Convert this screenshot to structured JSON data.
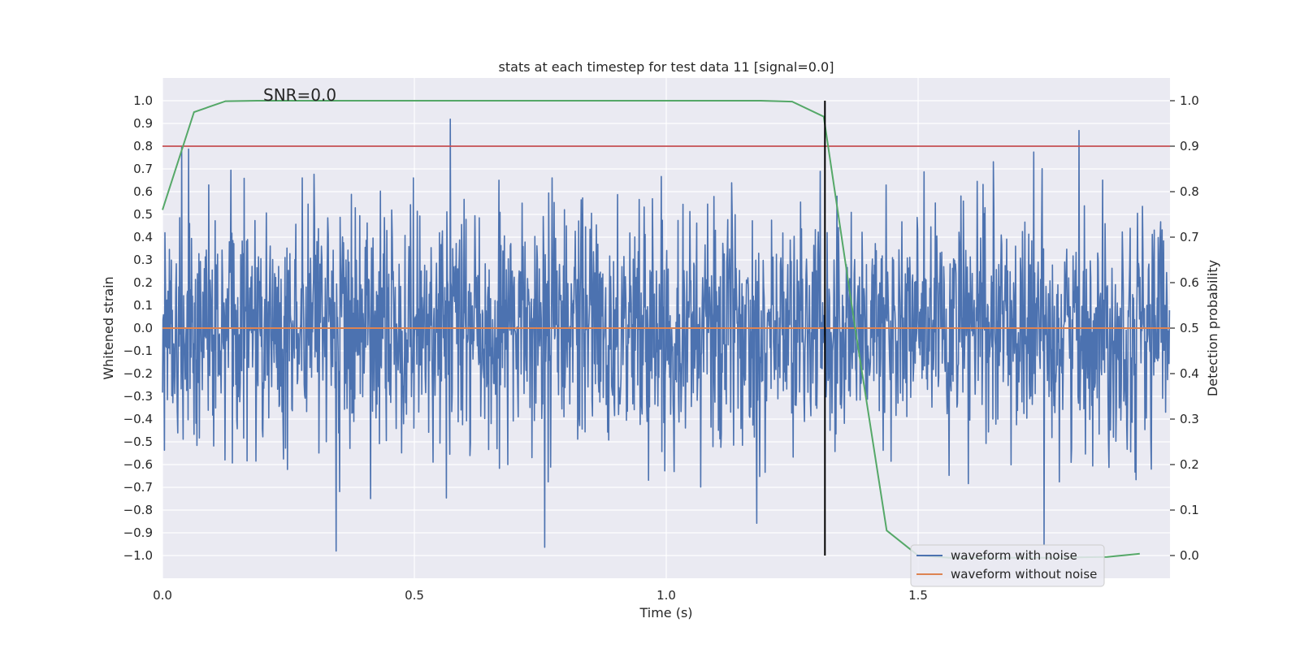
{
  "chart_data": {
    "type": "line",
    "title": "stats at each timestep for test data 11 [signal=0.0]",
    "annotation": "SNR=0.0",
    "xlabel": "Time (s)",
    "ylabel": "Whitened strain",
    "y2label": "Detection probability",
    "xlim": [
      0.0,
      2.0
    ],
    "ylim": [
      -1.1,
      1.1
    ],
    "y2lim": [
      -0.05,
      1.05
    ],
    "x_ticks": [
      0.0,
      0.5,
      1.0,
      1.5
    ],
    "x_tick_labels": [
      "0.0",
      "0.5",
      "1.0",
      "1.5"
    ],
    "y_ticks": [
      1.0,
      0.9,
      0.8,
      0.7,
      0.6,
      0.5,
      0.4,
      0.3,
      0.2,
      0.1,
      0.0,
      -0.1,
      -0.2,
      -0.3,
      -0.4,
      -0.5,
      -0.6,
      -0.7,
      -0.8,
      -0.9,
      -1.0
    ],
    "y_tick_labels": [
      "1.0",
      "0.9",
      "0.8",
      "0.7",
      "0.6",
      "0.5",
      "0.4",
      "0.3",
      "0.2",
      "0.1",
      "0.0",
      "−0.1",
      "−0.2",
      "−0.3",
      "−0.4",
      "−0.5",
      "−0.6",
      "−0.7",
      "−0.8",
      "−0.9",
      "−1.0"
    ],
    "y2_ticks": [
      1.0,
      0.9,
      0.8,
      0.7,
      0.6,
      0.5,
      0.4,
      0.3,
      0.2,
      0.1,
      0.0
    ],
    "y2_tick_labels": [
      "1.0",
      "0.9",
      "0.8",
      "0.7",
      "0.6",
      "0.5",
      "0.4",
      "0.3",
      "0.2",
      "0.1",
      "0.0"
    ],
    "grid": true,
    "legend_position": "lower-right",
    "noise_series": {
      "name": "waveform with noise",
      "color": "#4c72b0",
      "samples": 2048,
      "duration_s": 2.0,
      "amplitude_range": [
        -0.98,
        0.97
      ]
    },
    "clean_series": {
      "name": "waveform without noise",
      "color": "#dd8452",
      "value": 0.0
    },
    "probability_series": {
      "color": "#55a868",
      "x": [
        0.0,
        0.0625,
        0.125,
        0.1875,
        0.25,
        0.3125,
        0.375,
        0.4375,
        0.5,
        0.5625,
        0.625,
        0.6875,
        0.75,
        0.8125,
        0.875,
        0.9375,
        1.0,
        1.0625,
        1.125,
        1.1875,
        1.25,
        1.3125,
        1.375,
        1.4375,
        1.5,
        1.5625,
        1.625,
        1.6875,
        1.75,
        1.8125,
        1.875,
        1.94
      ],
      "y": [
        0.76,
        0.975,
        0.999,
        1.0,
        1.0,
        1.0,
        1.0,
        1.0,
        1.0,
        1.0,
        1.0,
        1.0,
        1.0,
        1.0,
        1.0,
        1.0,
        1.0,
        1.0,
        1.0,
        1.0,
        0.998,
        0.965,
        0.5,
        0.055,
        0.0,
        -0.005,
        -0.005,
        -0.005,
        -0.005,
        -0.004,
        -0.003,
        0.004
      ]
    },
    "threshold": {
      "value": 0.9,
      "color": "#c44e52"
    },
    "marker_line": {
      "x": 1.315,
      "y_range": [
        -1.0,
        1.0
      ],
      "color": "#000000"
    },
    "colors": {
      "plot_bg": "#eaeaf2",
      "grid": "#ffffff"
    }
  }
}
